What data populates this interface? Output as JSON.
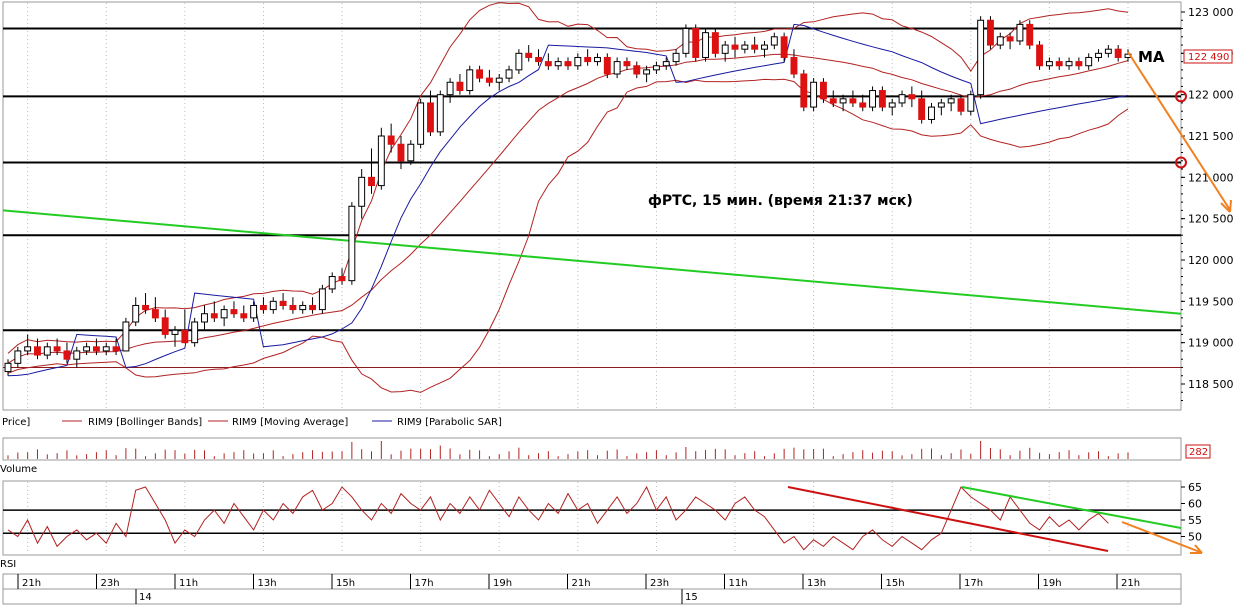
{
  "chart_data": [
    {
      "type": "candlestick",
      "annotation": "фРТС,  15 мин.  (время 21:37 мск)",
      "ma_label": "MA",
      "last_price_label": "122 490",
      "ylim": [
        118200,
        123100
      ],
      "y_ticks": [
        "123 000",
        "122 500",
        "122 000",
        "121 500",
        "121 000",
        "120 500",
        "120 000",
        "119 500",
        "119 000",
        "118 500"
      ],
      "horizontal_levels": [
        122800,
        121980,
        121180,
        120300,
        119150,
        118700
      ],
      "legend": [
        {
          "label": "Price]",
          "color": "#000000"
        },
        {
          "label": "RIM9 [Bollinger Bands]",
          "color": "#b22222"
        },
        {
          "label": "RIM9 [Moving Average]",
          "color": "#b22222"
        },
        {
          "label": "RIM9 [Parabolic SAR]",
          "color": "#1a1aa0"
        }
      ],
      "candles": [
        [
          118650,
          118800,
          118600,
          118750
        ],
        [
          118750,
          118950,
          118700,
          118900
        ],
        [
          118900,
          119100,
          118850,
          118950
        ],
        [
          118950,
          119050,
          118800,
          118850
        ],
        [
          118850,
          119000,
          118800,
          118950
        ],
        [
          118950,
          119050,
          118850,
          118900
        ],
        [
          118900,
          119000,
          118750,
          118800
        ],
        [
          118800,
          118950,
          118700,
          118900
        ],
        [
          118900,
          119000,
          118850,
          118950
        ],
        [
          118950,
          119050,
          118850,
          118900
        ],
        [
          118900,
          119000,
          118850,
          118950
        ],
        [
          118950,
          119050,
          118850,
          118900
        ],
        [
          118900,
          119300,
          118900,
          119250
        ],
        [
          119250,
          119550,
          119200,
          119450
        ],
        [
          119450,
          119600,
          119350,
          119400
        ],
        [
          119400,
          119550,
          119250,
          119300
        ],
        [
          119300,
          119400,
          119050,
          119100
        ],
        [
          119100,
          119200,
          118950,
          119150
        ],
        [
          119150,
          119400,
          119000,
          119000
        ],
        [
          119000,
          119300,
          118950,
          119250
        ],
        [
          119250,
          119450,
          119150,
          119350
        ],
        [
          119350,
          119500,
          119250,
          119300
        ],
        [
          119300,
          119450,
          119200,
          119400
        ],
        [
          119400,
          119500,
          119300,
          119350
        ],
        [
          119350,
          119450,
          119250,
          119300
        ],
        [
          119300,
          119500,
          119250,
          119450
        ],
        [
          119450,
          119550,
          119350,
          119400
        ],
        [
          119400,
          119550,
          119350,
          119500
        ],
        [
          119500,
          119600,
          119400,
          119450
        ],
        [
          119450,
          119550,
          119350,
          119400
        ],
        [
          119400,
          119500,
          119350,
          119450
        ],
        [
          119450,
          119550,
          119350,
          119400
        ],
        [
          119400,
          119700,
          119350,
          119650
        ],
        [
          119650,
          119850,
          119600,
          119800
        ],
        [
          119800,
          119900,
          119700,
          119750
        ],
        [
          119750,
          120700,
          119700,
          120650
        ],
        [
          120650,
          121100,
          120500,
          121000
        ],
        [
          121000,
          121350,
          120800,
          120900
        ],
        [
          120900,
          121600,
          120850,
          121500
        ],
        [
          121500,
          121650,
          121300,
          121400
        ],
        [
          121400,
          121500,
          121100,
          121200
        ],
        [
          121200,
          121450,
          121150,
          121400
        ],
        [
          121400,
          121950,
          121350,
          121900
        ],
        [
          121900,
          122050,
          121500,
          121550
        ],
        [
          121550,
          122050,
          121500,
          122000
        ],
        [
          122000,
          122200,
          121900,
          122150
        ],
        [
          122150,
          122250,
          122000,
          122050
        ],
        [
          122050,
          122350,
          122000,
          122300
        ],
        [
          122300,
          122350,
          122150,
          122200
        ],
        [
          122200,
          122300,
          122100,
          122150
        ],
        [
          122150,
          122250,
          122050,
          122200
        ],
        [
          122200,
          122350,
          122150,
          122300
        ],
        [
          122300,
          122550,
          122250,
          122500
        ],
        [
          122500,
          122600,
          122400,
          122450
        ],
        [
          122450,
          122550,
          122350,
          122400
        ],
        [
          122400,
          122500,
          122300,
          122350
        ],
        [
          122350,
          122450,
          122300,
          122400
        ],
        [
          122400,
          122450,
          122300,
          122350
        ],
        [
          122350,
          122500,
          122300,
          122450
        ],
        [
          122450,
          122550,
          122350,
          122400
        ],
        [
          122400,
          122500,
          122350,
          122450
        ],
        [
          122450,
          122500,
          122200,
          122250
        ],
        [
          122250,
          122450,
          122200,
          122400
        ],
        [
          122400,
          122450,
          122300,
          122350
        ],
        [
          122350,
          122400,
          122200,
          122250
        ],
        [
          122250,
          122350,
          122150,
          122300
        ],
        [
          122300,
          122400,
          122250,
          122350
        ],
        [
          122350,
          122450,
          122300,
          122400
        ],
        [
          122400,
          122550,
          122350,
          122500
        ],
        [
          122500,
          122850,
          122450,
          122800
        ],
        [
          122800,
          122850,
          122400,
          122450
        ],
        [
          122450,
          122800,
          122400,
          122750
        ],
        [
          122750,
          122800,
          122450,
          122500
        ],
        [
          122500,
          122650,
          122400,
          122600
        ],
        [
          122600,
          122700,
          122450,
          122550
        ],
        [
          122550,
          122650,
          122500,
          122600
        ],
        [
          122600,
          122700,
          122500,
          122550
        ],
        [
          122550,
          122650,
          122450,
          122600
        ],
        [
          122600,
          122750,
          122550,
          122700
        ],
        [
          122700,
          122750,
          122400,
          122450
        ],
        [
          122450,
          122550,
          122200,
          122250
        ],
        [
          122250,
          122300,
          121800,
          121850
        ],
        [
          121850,
          122200,
          121800,
          122150
        ],
        [
          122150,
          122200,
          121900,
          121950
        ],
        [
          121950,
          122050,
          121850,
          121900
        ],
        [
          121900,
          122000,
          121800,
          121950
        ],
        [
          121950,
          122050,
          121850,
          121900
        ],
        [
          121900,
          122000,
          121800,
          121850
        ],
        [
          121850,
          122100,
          121800,
          122050
        ],
        [
          122050,
          122100,
          121800,
          121850
        ],
        [
          121850,
          121950,
          121750,
          121900
        ],
        [
          121900,
          122050,
          121850,
          122000
        ],
        [
          122000,
          122100,
          121850,
          121950
        ],
        [
          121950,
          122050,
          121650,
          121700
        ],
        [
          121700,
          121900,
          121650,
          121850
        ],
        [
          121850,
          121950,
          121750,
          121900
        ],
        [
          121900,
          122000,
          121800,
          121950
        ],
        [
          121950,
          122000,
          121750,
          121800
        ],
        [
          121800,
          122050,
          121750,
          122000
        ],
        [
          122000,
          122950,
          121950,
          122900
        ],
        [
          122900,
          122950,
          122550,
          122600
        ],
        [
          122600,
          122750,
          122550,
          122700
        ],
        [
          122700,
          122750,
          122550,
          122650
        ],
        [
          122650,
          122900,
          122600,
          122850
        ],
        [
          122850,
          122900,
          122550,
          122600
        ],
        [
          122600,
          122650,
          122300,
          122350
        ],
        [
          122350,
          122450,
          122300,
          122400
        ],
        [
          122400,
          122450,
          122300,
          122350
        ],
        [
          122350,
          122450,
          122300,
          122400
        ],
        [
          122400,
          122450,
          122300,
          122350
        ],
        [
          122350,
          122500,
          122300,
          122450
        ],
        [
          122450,
          122550,
          122400,
          122500
        ],
        [
          122500,
          122600,
          122450,
          122550
        ],
        [
          122550,
          122600,
          122400,
          122450
        ],
        [
          122450,
          122550,
          122400,
          122490
        ]
      ],
      "green_trendline": {
        "y_start": 120600,
        "y_end": 119350
      }
    },
    {
      "type": "bar",
      "name": "Volume",
      "last_value_label": "282"
    },
    {
      "type": "line",
      "name": "RSI",
      "ylim": [
        45,
        67
      ],
      "y_ticks": [
        "65",
        "60",
        "55",
        "50"
      ],
      "levels": [
        58,
        51
      ],
      "values": [
        52,
        50,
        55,
        48,
        53,
        47,
        50,
        52,
        49,
        51,
        48,
        54,
        50,
        64,
        65,
        60,
        55,
        48,
        52,
        50,
        55,
        58,
        54,
        60,
        56,
        52,
        58,
        55,
        60,
        57,
        62,
        64,
        58,
        60,
        65,
        62,
        58,
        55,
        60,
        57,
        63,
        60,
        58,
        62,
        55,
        60,
        57,
        62,
        58,
        64,
        60,
        56,
        62,
        58,
        55,
        60,
        57,
        63,
        58,
        60,
        54,
        58,
        62,
        57,
        60,
        65,
        58,
        62,
        55,
        58,
        62,
        60,
        58,
        55,
        60,
        62,
        58,
        56,
        52,
        48,
        50,
        46,
        49,
        47,
        50,
        48,
        46,
        50,
        52,
        49,
        47,
        50,
        48,
        46,
        49,
        51,
        58,
        65,
        62,
        60,
        58,
        55,
        62,
        58,
        54,
        52,
        56,
        53,
        55,
        52,
        55,
        57,
        54
      ]
    }
  ],
  "time_axis": {
    "labels": [
      "21h",
      "23h",
      "11h",
      "13h",
      "15h",
      "17h",
      "19h",
      "21h",
      "23h",
      "11h",
      "13h",
      "15h",
      "17h",
      "19h",
      "21h"
    ],
    "dates": [
      "14",
      "15"
    ]
  },
  "colors": {
    "bull": "#ffffff",
    "bear": "#dd1111",
    "bollinger": "#b22222",
    "sar": "#1a1aa0",
    "trend_green": "#22cc22",
    "trend_red": "#cc1111",
    "projection": "#f08020"
  }
}
